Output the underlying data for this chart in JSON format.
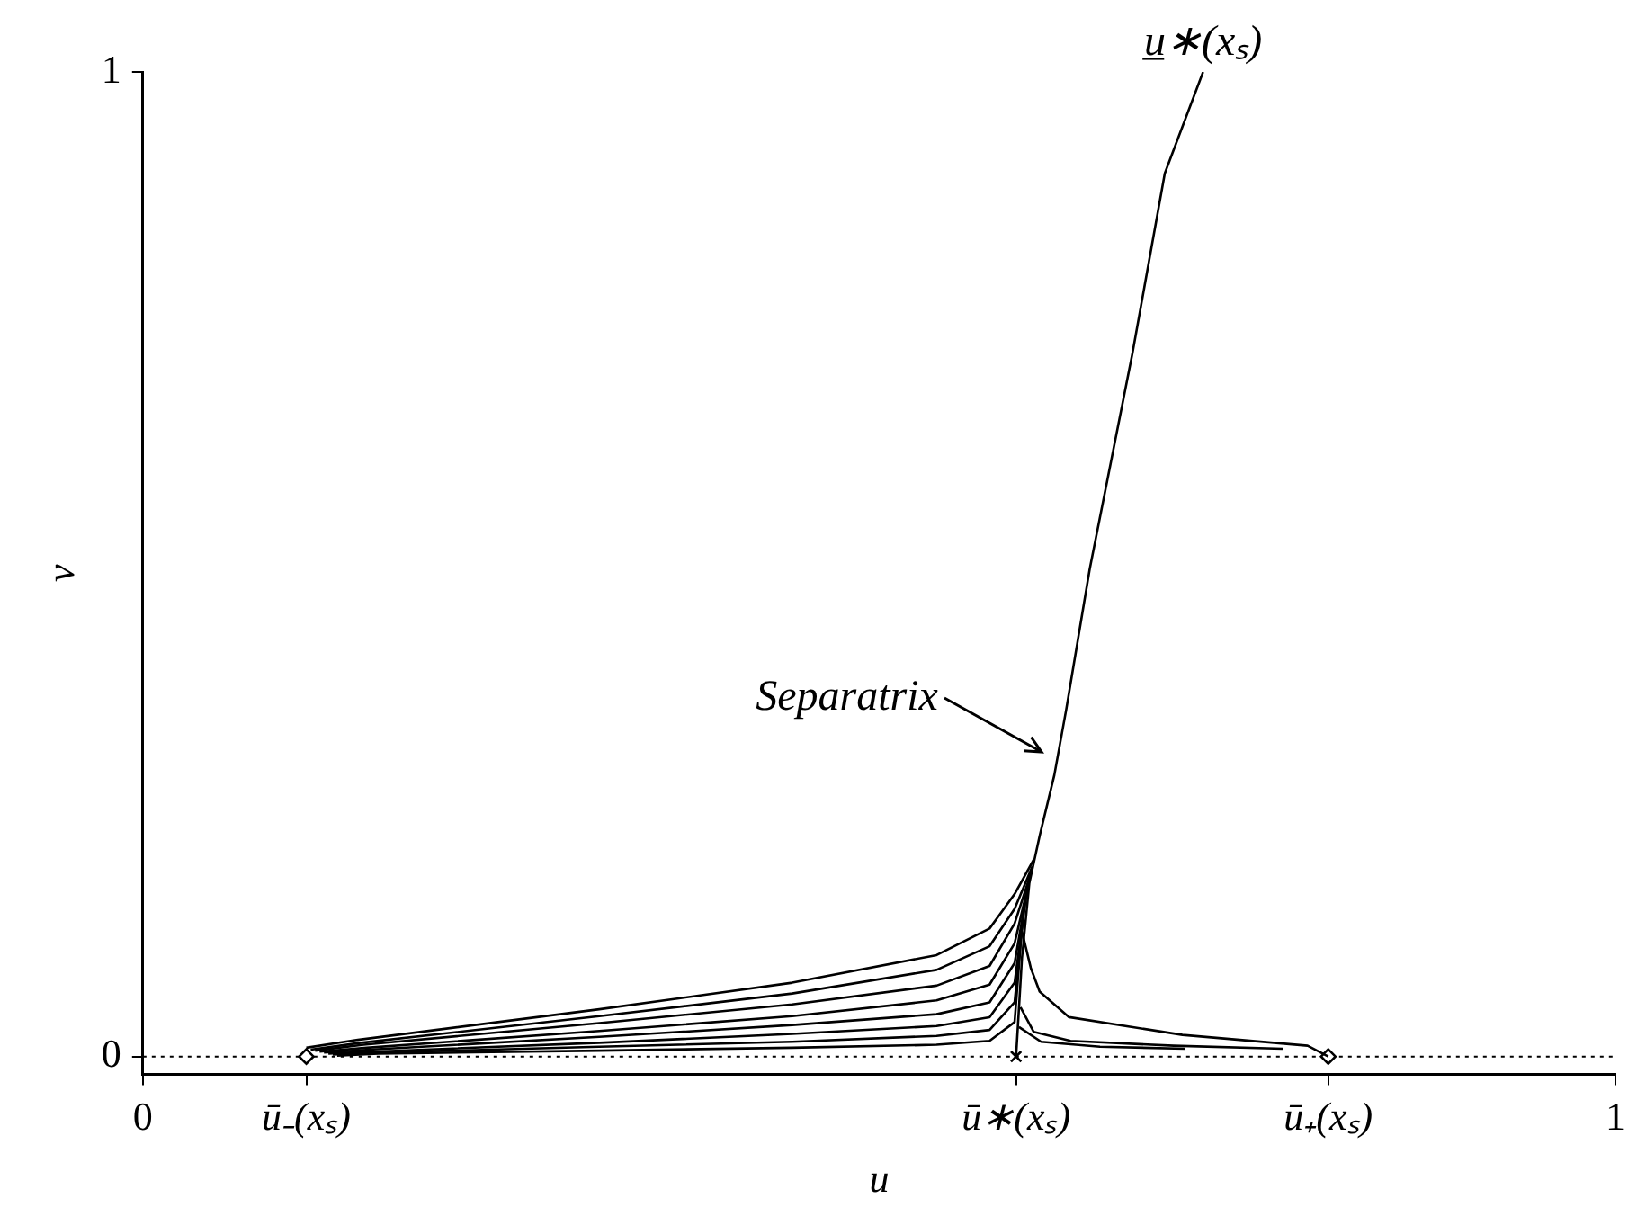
{
  "chart_data": {
    "type": "line",
    "xlabel": "u",
    "ylabel": "v",
    "xlim": [
      0,
      1
    ],
    "ylim": [
      -0.018,
      1
    ],
    "xticks": [
      0,
      {
        "value": 0.111,
        "label": "ū₋(xₛ)"
      },
      {
        "value": 0.593,
        "label": "ū∗(xₛ)"
      },
      {
        "value": 0.805,
        "label": "ū₊(xₛ)"
      },
      1
    ],
    "yticks": [
      0,
      1
    ],
    "grid": false,
    "legend": false,
    "marker": "none",
    "line_style": "solid",
    "ref_lines": [
      {
        "axis": "y",
        "value": 0,
        "color": "#000000",
        "line_style": "dotted"
      }
    ],
    "annotations": [
      "Separatrix",
      {
        "text": "u̲∗(xₛ)",
        "x": 0.72,
        "y": 1
      }
    ],
    "series": [
      {
        "color": "#000000",
        "x": [
          0.593,
          0.597,
          0.602,
          0.609,
          0.619,
          0.627,
          0.643,
          0.672,
          0.694,
          0.72
        ],
        "values": [
          0,
          0.1,
          0.176,
          0.224,
          0.286,
          0.352,
          0.495,
          0.714,
          0.897,
          1
        ]
      },
      {
        "color": "#000000",
        "x": [
          0.111,
          0.146,
          0.31,
          0.441,
          0.539,
          0.575,
          0.592,
          0.605
        ],
        "values": [
          0.009,
          0.017,
          0.048,
          0.075,
          0.103,
          0.13,
          0.165,
          0.2
        ]
      },
      {
        "color": "#000000",
        "x": [
          0.114,
          0.148,
          0.31,
          0.441,
          0.539,
          0.575,
          0.592,
          0.604
        ],
        "values": [
          0.007,
          0.014,
          0.041,
          0.064,
          0.088,
          0.112,
          0.15,
          0.193
        ]
      },
      {
        "color": "#000000",
        "x": [
          0.117,
          0.15,
          0.31,
          0.441,
          0.539,
          0.575,
          0.592,
          0.603
        ],
        "values": [
          0.006,
          0.012,
          0.034,
          0.053,
          0.072,
          0.092,
          0.135,
          0.186
        ]
      },
      {
        "color": "#000000",
        "x": [
          0.12,
          0.152,
          0.31,
          0.441,
          0.539,
          0.575,
          0.592,
          0.602
        ],
        "values": [
          0.005,
          0.009,
          0.026,
          0.041,
          0.057,
          0.073,
          0.115,
          0.179
        ]
      },
      {
        "color": "#000000",
        "x": [
          0.123,
          0.154,
          0.31,
          0.441,
          0.539,
          0.575,
          0.592,
          0.601
        ],
        "values": [
          0.004,
          0.007,
          0.02,
          0.032,
          0.043,
          0.055,
          0.095,
          0.172
        ]
      },
      {
        "color": "#000000",
        "x": [
          0.126,
          0.156,
          0.31,
          0.441,
          0.539,
          0.575,
          0.592,
          0.6
        ],
        "values": [
          0.003,
          0.005,
          0.014,
          0.023,
          0.031,
          0.04,
          0.075,
          0.165
        ]
      },
      {
        "color": "#000000",
        "x": [
          0.129,
          0.158,
          0.31,
          0.441,
          0.539,
          0.575,
          0.592,
          0.599
        ],
        "values": [
          0.002,
          0.004,
          0.01,
          0.015,
          0.021,
          0.027,
          0.055,
          0.158
        ]
      },
      {
        "color": "#000000",
        "x": [
          0.132,
          0.16,
          0.31,
          0.441,
          0.539,
          0.575,
          0.592,
          0.598
        ],
        "values": [
          0.001,
          0.003,
          0.006,
          0.009,
          0.012,
          0.016,
          0.035,
          0.151
        ]
      },
      {
        "color": "#000000",
        "x": [
          0.597,
          0.603,
          0.609,
          0.629,
          0.706,
          0.791,
          0.805
        ],
        "values": [
          0.127,
          0.09,
          0.066,
          0.04,
          0.022,
          0.011,
          0
        ]
      },
      {
        "color": "#000000",
        "x": [
          0.596,
          0.605,
          0.63,
          0.7,
          0.774
        ],
        "values": [
          0.05,
          0.025,
          0.016,
          0.011,
          0.008
        ]
      },
      {
        "color": "#000000",
        "x": [
          0.595,
          0.61,
          0.65,
          0.708
        ],
        "values": [
          0.03,
          0.015,
          0.01,
          0.008
        ]
      },
      {
        "type": "scatter",
        "marker": "diamond",
        "color": "#000000",
        "x": [
          0.111,
          0.805
        ],
        "values": [
          0,
          0
        ]
      },
      {
        "type": "scatter",
        "marker": "cross",
        "color": "#000000",
        "x": [
          0.593
        ],
        "values": [
          0
        ]
      }
    ]
  }
}
